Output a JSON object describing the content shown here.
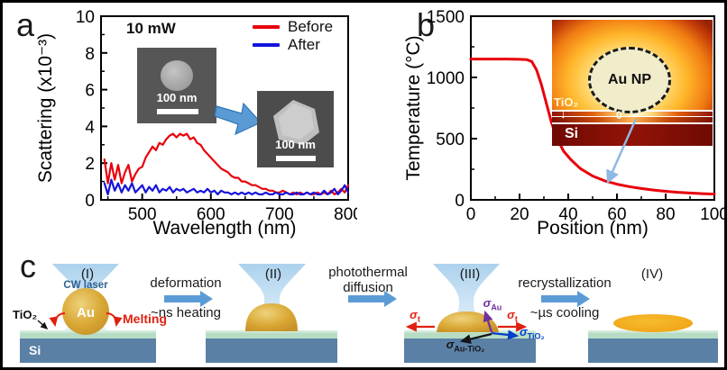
{
  "panel_a": {
    "label": "a",
    "power_label": "10 mW",
    "legend": [
      {
        "label": "Before",
        "color": "#e8000b"
      },
      {
        "label": "After",
        "color": "#1414dc"
      }
    ],
    "insets": [
      {
        "name": "before-sem",
        "particle_shape": "sphere",
        "scale_label": "100 nm"
      },
      {
        "name": "after-sem",
        "particle_shape": "faceted",
        "scale_label": "100 nm"
      }
    ]
  },
  "panel_b": {
    "label": "b",
    "inset": {
      "particle_label": "Au NP",
      "layer_label": "TiO₂",
      "layer_arrow": "↓",
      "zero_label": "0",
      "substrate_label": "Si"
    }
  },
  "panel_c": {
    "label": "c",
    "stages": [
      {
        "numeral": "(I)",
        "laser_label": "CW laser",
        "particle_label": "Au",
        "melting_label": "Melting",
        "tio2_label": "TiO₂",
        "si_label": "Si"
      },
      {
        "numeral": "(II)"
      },
      {
        "numeral": "(III)",
        "stress": [
          {
            "base": "σ",
            "sub": "t",
            "color": "#e02010"
          },
          {
            "base": "σ",
            "sub": "t",
            "color": "#e02010"
          },
          {
            "base": "σ",
            "sub": "Au",
            "color": "#7030a0"
          },
          {
            "base": "σ",
            "sub": "TiO₂",
            "color": "#0040c8"
          },
          {
            "base": "σ",
            "sub": "Au-TiO₂",
            "color": "#151515"
          }
        ]
      },
      {
        "numeral": "(IV)"
      }
    ],
    "transitions": [
      {
        "lines_above": [
          "deformation"
        ],
        "lines_below": [
          "~ns heating"
        ]
      },
      {
        "lines_above": [
          "photothermal",
          "diffusion"
        ],
        "lines_below": []
      },
      {
        "lines_above": [
          "recrystallization"
        ],
        "lines_below": [
          "~µs cooling"
        ]
      }
    ]
  },
  "chart_data": [
    {
      "id": "scattering",
      "type": "line",
      "title": "",
      "xlabel": "Wavelength (nm)",
      "ylabel": "Scattering (x10⁻³)",
      "xlim": [
        440,
        800
      ],
      "ylim": [
        0,
        10
      ],
      "xticks": [
        500,
        600,
        700,
        800
      ],
      "yticks": [
        0,
        2,
        4,
        6,
        8,
        10
      ],
      "xminor": [
        450,
        550,
        650,
        750
      ],
      "yminor": [
        1,
        3,
        5,
        7,
        9
      ],
      "grid": false,
      "legend_position": "top-right-inside",
      "x_start": 445,
      "x_step": 5,
      "series": [
        {
          "name": "Before",
          "color": "#e8000b",
          "y": [
            2.2,
            0.9,
            2.0,
            1.1,
            1.9,
            0.9,
            1.5,
            1.9,
            1.0,
            1.4,
            1.7,
            1.8,
            2.3,
            2.6,
            2.9,
            2.7,
            3.1,
            3.0,
            3.3,
            3.5,
            3.6,
            3.4,
            3.6,
            3.5,
            3.6,
            3.3,
            3.4,
            3.1,
            3.0,
            2.7,
            2.5,
            2.3,
            2.1,
            1.9,
            1.7,
            1.6,
            1.5,
            1.3,
            1.2,
            1.2,
            1.0,
            1.0,
            0.9,
            0.8,
            0.8,
            0.7,
            0.6,
            0.6,
            0.5,
            0.5,
            0.4,
            0.4,
            0.5,
            0.4,
            0.3,
            0.4,
            0.3,
            0.4,
            0.3,
            0.4,
            0.3,
            0.3,
            0.4,
            0.3,
            0.4,
            0.3,
            0.5,
            0.3,
            0.4,
            0.6,
            0.4,
            0.8
          ]
        },
        {
          "name": "After",
          "color": "#1414dc",
          "y": [
            0.9,
            0.3,
            1.1,
            0.5,
            0.9,
            0.4,
            0.8,
            0.5,
            0.9,
            0.4,
            0.6,
            0.8,
            0.4,
            0.7,
            0.5,
            0.8,
            0.4,
            0.6,
            0.5,
            0.7,
            0.4,
            0.6,
            0.5,
            0.6,
            0.4,
            0.5,
            0.6,
            0.4,
            0.5,
            0.4,
            0.6,
            0.4,
            0.5,
            0.3,
            0.5,
            0.4,
            0.4,
            0.3,
            0.4,
            0.3,
            0.4,
            0.3,
            0.4,
            0.3,
            0.4,
            0.3,
            0.3,
            0.4,
            0.3,
            0.3,
            0.4,
            0.3,
            0.3,
            0.4,
            0.3,
            0.3,
            0.4,
            0.3,
            0.3,
            0.4,
            0.3,
            0.4,
            0.3,
            0.3,
            0.5,
            0.3,
            0.4,
            0.6,
            0.3,
            0.5,
            0.8,
            0.4
          ]
        }
      ]
    },
    {
      "id": "temperature",
      "type": "line",
      "title": "",
      "xlabel": "Position (nm)",
      "ylabel": "Temperature (°C)",
      "xlim": [
        0,
        100
      ],
      "ylim": [
        0,
        1500
      ],
      "xticks": [
        0,
        20,
        40,
        60,
        80,
        100
      ],
      "yticks": [
        0,
        500,
        1000,
        1500
      ],
      "xminor": [
        10,
        30,
        50,
        70,
        90
      ],
      "yminor": [
        250,
        750,
        1250
      ],
      "grid": false,
      "series": [
        {
          "name": "Temperature",
          "color": "#e8000b",
          "x": [
            0,
            5,
            10,
            15,
            20,
            23,
            25,
            27,
            29,
            31,
            33,
            35,
            38,
            41,
            45,
            50,
            55,
            60,
            65,
            70,
            75,
            80,
            85,
            90,
            95,
            100
          ],
          "y": [
            1150,
            1150,
            1150,
            1150,
            1148,
            1145,
            1130,
            1060,
            940,
            790,
            640,
            520,
            400,
            330,
            255,
            195,
            155,
            128,
            108,
            93,
            80,
            70,
            62,
            56,
            51,
            47
          ]
        }
      ]
    }
  ]
}
